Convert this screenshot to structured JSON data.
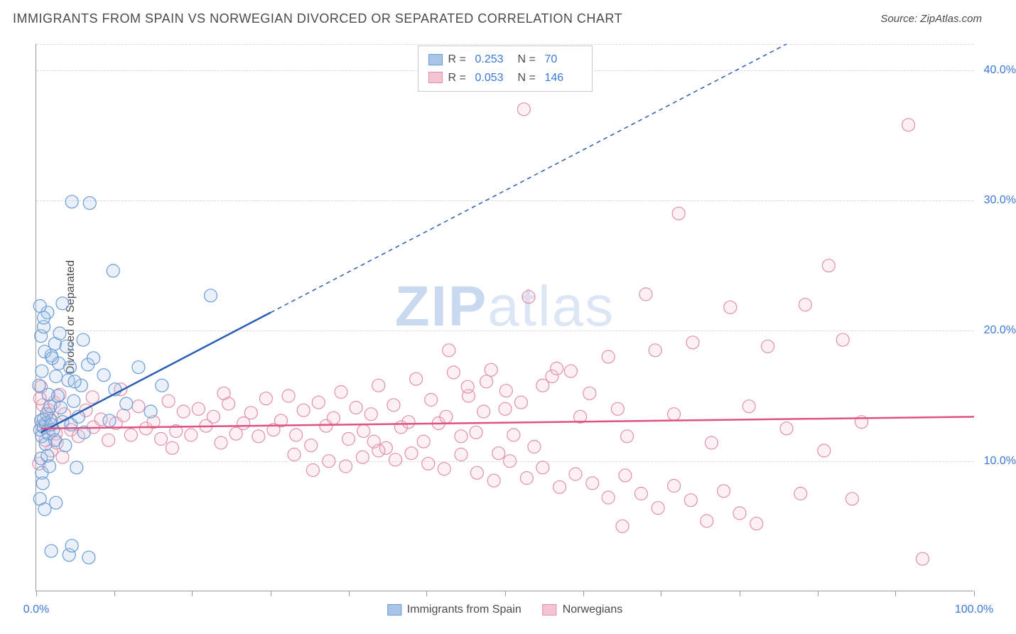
{
  "title": "IMMIGRANTS FROM SPAIN VS NORWEGIAN DIVORCED OR SEPARATED CORRELATION CHART",
  "source_prefix": "Source: ",
  "source": "ZipAtlas.com",
  "watermark_a": "ZIP",
  "watermark_b": "atlas",
  "y_axis_label": "Divorced or Separated",
  "chart": {
    "type": "scatter",
    "xlim": [
      0,
      100
    ],
    "ylim": [
      0,
      42
    ],
    "x_ticks": [
      0,
      8.3,
      16.6,
      25,
      33.3,
      41.6,
      50,
      58.3,
      66.6,
      75,
      83.3,
      91.6,
      100
    ],
    "x_tick_labels": {
      "0": "0.0%",
      "100": "100.0%"
    },
    "y_gridlines": [
      10,
      20,
      30,
      40,
      42
    ],
    "y_tick_labels": {
      "10": "10.0%",
      "20": "20.0%",
      "30": "30.0%",
      "40": "40.0%"
    },
    "background_color": "#ffffff",
    "grid_color": "#d8d8d8",
    "axis_color": "#9b9b9b",
    "label_color": "#3b78d8",
    "marker_radius": 9,
    "marker_stroke_width": 1.2,
    "marker_fill_opacity": 0.25,
    "series": [
      {
        "name": "Immigrants from Spain",
        "color_stroke": "#6a9cd6",
        "color_fill": "#a8c5e8",
        "trend_color": "#2a5db3",
        "trend_width": 2.5,
        "trend_solid": {
          "x1": 0.5,
          "y1": 12.2,
          "x2": 25,
          "y2": 21.4
        },
        "trend_dashed": {
          "x1": 25,
          "y1": 21.4,
          "x2": 80,
          "y2": 42
        },
        "R_label": "R =",
        "R": "0.253",
        "N_label": "N =",
        "N": "70",
        "points": [
          [
            0.4,
            12.4
          ],
          [
            0.5,
            13.1
          ],
          [
            0.6,
            11.9
          ],
          [
            0.8,
            12.6
          ],
          [
            0.5,
            10.2
          ],
          [
            0.6,
            9.1
          ],
          [
            0.7,
            8.3
          ],
          [
            0.4,
            7.1
          ],
          [
            0.9,
            6.3
          ],
          [
            1.0,
            12.9
          ],
          [
            1.1,
            13.6
          ],
          [
            1.3,
            12.1
          ],
          [
            1.5,
            14.2
          ],
          [
            1.6,
            13.1
          ],
          [
            1.8,
            12.4
          ],
          [
            2.0,
            11.6
          ],
          [
            2.3,
            15.0
          ],
          [
            2.6,
            14.1
          ],
          [
            2.8,
            13.0
          ],
          [
            3.1,
            11.2
          ],
          [
            3.4,
            16.2
          ],
          [
            3.7,
            12.8
          ],
          [
            4.0,
            14.6
          ],
          [
            4.3,
            9.5
          ],
          [
            4.5,
            13.4
          ],
          [
            4.8,
            15.8
          ],
          [
            5.1,
            12.2
          ],
          [
            5.5,
            17.4
          ],
          [
            0.5,
            19.6
          ],
          [
            0.8,
            20.3
          ],
          [
            1.2,
            21.4
          ],
          [
            1.6,
            18.1
          ],
          [
            2.0,
            19.0
          ],
          [
            2.4,
            17.5
          ],
          [
            2.8,
            22.1
          ],
          [
            3.2,
            18.8
          ],
          [
            3.6,
            17.2
          ],
          [
            4.1,
            16.1
          ],
          [
            0.3,
            15.8
          ],
          [
            0.6,
            16.9
          ],
          [
            0.9,
            18.4
          ],
          [
            1.3,
            15.1
          ],
          [
            1.7,
            17.9
          ],
          [
            2.1,
            16.5
          ],
          [
            2.5,
            19.8
          ],
          [
            0.4,
            21.9
          ],
          [
            0.8,
            21.0
          ],
          [
            3.8,
            29.9
          ],
          [
            5.7,
            29.8
          ],
          [
            8.2,
            24.6
          ],
          [
            5.0,
            19.3
          ],
          [
            6.1,
            17.9
          ],
          [
            7.2,
            16.6
          ],
          [
            8.4,
            15.5
          ],
          [
            9.6,
            14.4
          ],
          [
            10.9,
            17.2
          ],
          [
            12.2,
            13.8
          ],
          [
            7.8,
            13.1
          ],
          [
            18.6,
            22.7
          ],
          [
            13.4,
            15.8
          ],
          [
            1.6,
            3.1
          ],
          [
            3.5,
            2.8
          ],
          [
            2.1,
            6.8
          ],
          [
            3.8,
            3.5
          ],
          [
            5.6,
            2.6
          ],
          [
            0.8,
            13.2
          ],
          [
            1.0,
            11.3
          ],
          [
            1.2,
            10.4
          ],
          [
            1.4,
            9.6
          ],
          [
            1.6,
            12.8
          ]
        ]
      },
      {
        "name": "Norwegians",
        "color_stroke": "#e190a8",
        "color_fill": "#f4c4d2",
        "trend_color": "#e0527e",
        "trend_width": 2.5,
        "trend_solid": {
          "x1": 0.5,
          "y1": 12.5,
          "x2": 100,
          "y2": 13.4
        },
        "R_label": "R =",
        "R": "0.053",
        "N_label": "N =",
        "N": "146",
        "points": [
          [
            0.6,
            12.7
          ],
          [
            1.4,
            13.3
          ],
          [
            2.1,
            12.1
          ],
          [
            3.0,
            13.6
          ],
          [
            3.7,
            12.4
          ],
          [
            4.5,
            11.9
          ],
          [
            5.3,
            13.9
          ],
          [
            6.1,
            12.6
          ],
          [
            6.9,
            13.2
          ],
          [
            7.7,
            11.6
          ],
          [
            8.5,
            12.9
          ],
          [
            9.3,
            13.5
          ],
          [
            10.1,
            12.0
          ],
          [
            10.9,
            14.2
          ],
          [
            11.7,
            12.5
          ],
          [
            12.5,
            13.0
          ],
          [
            13.3,
            11.7
          ],
          [
            14.1,
            14.6
          ],
          [
            14.9,
            12.3
          ],
          [
            15.7,
            13.8
          ],
          [
            16.5,
            12.0
          ],
          [
            17.3,
            14.0
          ],
          [
            18.1,
            12.7
          ],
          [
            18.9,
            13.4
          ],
          [
            19.7,
            11.4
          ],
          [
            20.5,
            14.4
          ],
          [
            21.3,
            12.1
          ],
          [
            22.1,
            12.9
          ],
          [
            22.9,
            13.7
          ],
          [
            23.7,
            11.9
          ],
          [
            24.5,
            14.8
          ],
          [
            25.3,
            12.4
          ],
          [
            26.1,
            13.1
          ],
          [
            26.9,
            15.0
          ],
          [
            27.7,
            12.0
          ],
          [
            28.5,
            13.9
          ],
          [
            29.3,
            11.2
          ],
          [
            30.1,
            14.5
          ],
          [
            30.9,
            12.7
          ],
          [
            31.7,
            13.3
          ],
          [
            32.5,
            15.3
          ],
          [
            33.3,
            11.7
          ],
          [
            34.1,
            14.1
          ],
          [
            34.9,
            12.3
          ],
          [
            35.7,
            13.6
          ],
          [
            36.5,
            15.8
          ],
          [
            37.3,
            11.0
          ],
          [
            38.1,
            14.3
          ],
          [
            38.9,
            12.6
          ],
          [
            39.7,
            13.0
          ],
          [
            40.5,
            16.3
          ],
          [
            41.3,
            11.5
          ],
          [
            42.1,
            14.7
          ],
          [
            42.9,
            12.9
          ],
          [
            43.7,
            13.4
          ],
          [
            44.5,
            16.8
          ],
          [
            45.3,
            11.9
          ],
          [
            46.1,
            15.0
          ],
          [
            46.9,
            12.2
          ],
          [
            47.7,
            13.8
          ],
          [
            48.5,
            17.0
          ],
          [
            49.3,
            10.6
          ],
          [
            50.1,
            15.4
          ],
          [
            50.9,
            12.0
          ],
          [
            51.7,
            14.5
          ],
          [
            52.5,
            22.6
          ],
          [
            53.1,
            11.1
          ],
          [
            54.0,
            15.8
          ],
          [
            29.5,
            9.3
          ],
          [
            31.2,
            10.0
          ],
          [
            33.0,
            9.6
          ],
          [
            34.8,
            10.3
          ],
          [
            36.5,
            10.8
          ],
          [
            38.3,
            10.1
          ],
          [
            40.0,
            10.6
          ],
          [
            41.8,
            9.8
          ],
          [
            43.5,
            9.4
          ],
          [
            45.3,
            10.5
          ],
          [
            47.0,
            9.1
          ],
          [
            48.8,
            8.5
          ],
          [
            50.5,
            10.0
          ],
          [
            52.3,
            8.7
          ],
          [
            54.0,
            9.5
          ],
          [
            55.8,
            8.0
          ],
          [
            57.5,
            9.0
          ],
          [
            59.3,
            8.3
          ],
          [
            61.0,
            7.2
          ],
          [
            62.8,
            8.9
          ],
          [
            64.5,
            7.5
          ],
          [
            66.3,
            6.4
          ],
          [
            68.0,
            8.1
          ],
          [
            69.8,
            7.0
          ],
          [
            71.5,
            5.4
          ],
          [
            73.3,
            7.7
          ],
          [
            75.0,
            6.0
          ],
          [
            76.8,
            5.2
          ],
          [
            52.0,
            37.0
          ],
          [
            46.0,
            15.7
          ],
          [
            48.0,
            16.1
          ],
          [
            50.0,
            14.0
          ],
          [
            55.0,
            16.5
          ],
          [
            58.0,
            13.4
          ],
          [
            61.0,
            18.0
          ],
          [
            63.0,
            11.9
          ],
          [
            65.0,
            22.8
          ],
          [
            57.0,
            16.9
          ],
          [
            59.0,
            15.2
          ],
          [
            62.0,
            14.0
          ],
          [
            66.0,
            18.5
          ],
          [
            68.0,
            13.6
          ],
          [
            70.0,
            19.1
          ],
          [
            72.0,
            11.4
          ],
          [
            74.0,
            21.8
          ],
          [
            76.0,
            14.2
          ],
          [
            78.0,
            18.8
          ],
          [
            80.0,
            12.5
          ],
          [
            82.0,
            22.0
          ],
          [
            84.0,
            10.8
          ],
          [
            86.0,
            19.3
          ],
          [
            88.0,
            13.0
          ],
          [
            68.5,
            29.0
          ],
          [
            84.5,
            25.0
          ],
          [
            93.0,
            35.8
          ],
          [
            87.0,
            7.1
          ],
          [
            94.5,
            2.5
          ],
          [
            81.5,
            7.5
          ],
          [
            62.5,
            5.0
          ],
          [
            55.5,
            17.1
          ],
          [
            44.0,
            18.5
          ],
          [
            36.0,
            11.5
          ],
          [
            27.5,
            10.5
          ],
          [
            20.0,
            15.2
          ],
          [
            14.5,
            11.0
          ],
          [
            9.0,
            15.5
          ],
          [
            6.0,
            14.9
          ],
          [
            0.7,
            14.3
          ],
          [
            1.0,
            11.6
          ],
          [
            1.3,
            13.9
          ],
          [
            1.6,
            10.8
          ],
          [
            1.9,
            14.5
          ],
          [
            2.2,
            11.4
          ],
          [
            2.5,
            15.1
          ],
          [
            2.8,
            10.3
          ],
          [
            0.3,
            9.8
          ],
          [
            0.4,
            14.8
          ],
          [
            0.5,
            15.7
          ]
        ]
      }
    ]
  },
  "legend_bottom": [
    {
      "label": "Immigrants from Spain",
      "fill": "#a8c5e8",
      "stroke": "#6a9cd6"
    },
    {
      "label": "Norwegians",
      "fill": "#f4c4d2",
      "stroke": "#e190a8"
    }
  ]
}
